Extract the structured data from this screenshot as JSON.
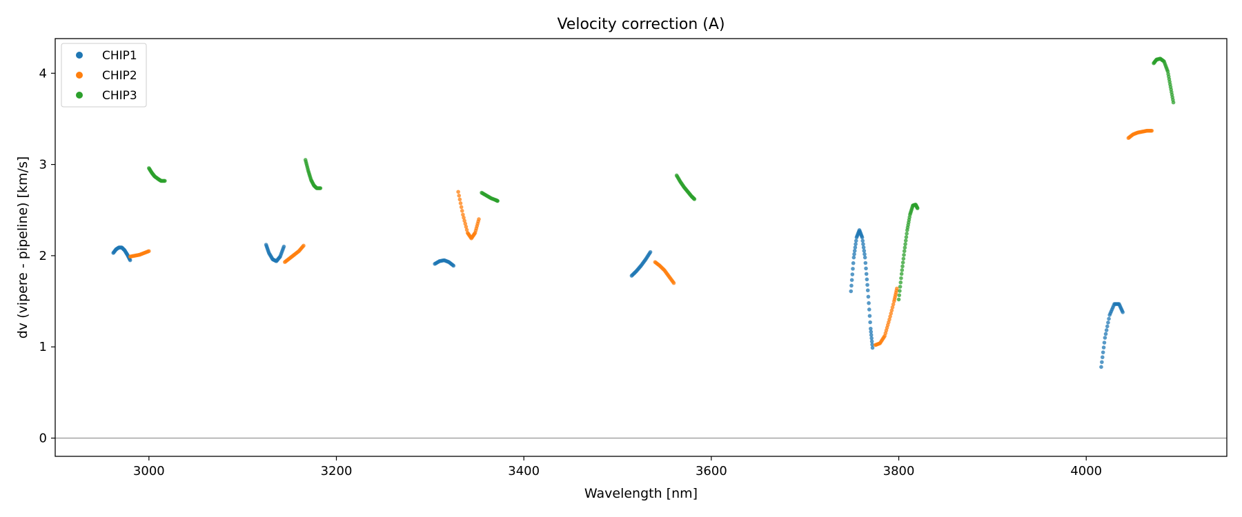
{
  "chart_data": {
    "type": "scatter",
    "title": "Velocity correction (A)",
    "xlabel": "Wavelength [nm]",
    "ylabel": "dv (vipere - pipeline) [km/s]",
    "xlim": [
      2900,
      4150
    ],
    "ylim": [
      -0.2,
      4.38
    ],
    "xticks": [
      3000,
      3200,
      3400,
      3600,
      3800,
      4000
    ],
    "yticks": [
      0,
      1,
      2,
      3,
      4
    ],
    "xtick_labels": [
      "3000",
      "3200",
      "3400",
      "3600",
      "3800",
      "4000"
    ],
    "ytick_labels": [
      "0",
      "1",
      "2",
      "3",
      "4"
    ],
    "hline_y": 0,
    "hline_color": "#808080",
    "grid": false,
    "legend_position": "top-left",
    "series": [
      {
        "name": "CHIP1",
        "color": "#1f77b4",
        "segments": [
          [
            [
              2962,
              2.03
            ],
            [
              2965,
              2.07
            ],
            [
              2968,
              2.09
            ],
            [
              2971,
              2.09
            ],
            [
              2974,
              2.06
            ],
            [
              2977,
              2.01
            ],
            [
              2980,
              1.95
            ]
          ],
          [
            [
              3125,
              2.12
            ],
            [
              3128,
              2.03
            ],
            [
              3132,
              1.96
            ],
            [
              3136,
              1.94
            ],
            [
              3140,
              1.99
            ],
            [
              3144,
              2.1
            ]
          ],
          [
            [
              3305,
              1.91
            ],
            [
              3310,
              1.94
            ],
            [
              3315,
              1.95
            ],
            [
              3320,
              1.93
            ],
            [
              3325,
              1.89
            ]
          ],
          [
            [
              3515,
              1.78
            ],
            [
              3520,
              1.83
            ],
            [
              3525,
              1.89
            ],
            [
              3530,
              1.96
            ],
            [
              3535,
              2.04
            ]
          ],
          [
            [
              3749,
              1.61
            ],
            [
              3752,
              1.98
            ],
            [
              3755,
              2.2
            ],
            [
              3758,
              2.28
            ],
            [
              3761,
              2.2
            ],
            [
              3764,
              1.98
            ],
            [
              3767,
              1.62
            ],
            [
              3770,
              1.2
            ],
            [
              3772,
              0.99
            ]
          ],
          [
            [
              4016,
              0.78
            ],
            [
              4020,
              1.1
            ],
            [
              4025,
              1.35
            ],
            [
              4030,
              1.47
            ],
            [
              4035,
              1.47
            ],
            [
              4039,
              1.38
            ]
          ]
        ]
      },
      {
        "name": "CHIP2",
        "color": "#ff7f0e",
        "segments": [
          [
            [
              2980,
              1.99
            ],
            [
              2985,
              2.0
            ],
            [
              2990,
              2.01
            ],
            [
              2995,
              2.03
            ],
            [
              3000,
              2.05
            ]
          ],
          [
            [
              3145,
              1.93
            ],
            [
              3150,
              1.97
            ],
            [
              3155,
              2.01
            ],
            [
              3160,
              2.05
            ],
            [
              3165,
              2.11
            ]
          ],
          [
            [
              3330,
              2.7
            ],
            [
              3335,
              2.45
            ],
            [
              3340,
              2.25
            ],
            [
              3344,
              2.19
            ],
            [
              3348,
              2.25
            ],
            [
              3352,
              2.4
            ]
          ],
          [
            [
              3540,
              1.93
            ],
            [
              3545,
              1.89
            ],
            [
              3550,
              1.84
            ],
            [
              3555,
              1.77
            ],
            [
              3560,
              1.7
            ]
          ],
          [
            [
              3775,
              1.02
            ],
            [
              3780,
              1.04
            ],
            [
              3785,
              1.12
            ],
            [
              3790,
              1.3
            ],
            [
              3795,
              1.5
            ],
            [
              3798,
              1.64
            ]
          ],
          [
            [
              4045,
              3.29
            ],
            [
              4050,
              3.33
            ],
            [
              4055,
              3.35
            ],
            [
              4060,
              3.36
            ],
            [
              4065,
              3.37
            ],
            [
              4070,
              3.37
            ]
          ]
        ]
      },
      {
        "name": "CHIP3",
        "color": "#2ca02c",
        "segments": [
          [
            [
              3000,
              2.96
            ],
            [
              3003,
              2.91
            ],
            [
              3006,
              2.87
            ],
            [
              3010,
              2.84
            ],
            [
              3013,
              2.82
            ],
            [
              3017,
              2.82
            ]
          ],
          [
            [
              3167,
              3.05
            ],
            [
              3170,
              2.93
            ],
            [
              3173,
              2.83
            ],
            [
              3176,
              2.77
            ],
            [
              3179,
              2.74
            ],
            [
              3183,
              2.74
            ]
          ],
          [
            [
              3355,
              2.69
            ],
            [
              3360,
              2.66
            ],
            [
              3365,
              2.63
            ],
            [
              3370,
              2.61
            ],
            [
              3372,
              2.6
            ]
          ],
          [
            [
              3563,
              2.88
            ],
            [
              3567,
              2.81
            ],
            [
              3571,
              2.75
            ],
            [
              3575,
              2.7
            ],
            [
              3579,
              2.65
            ],
            [
              3582,
              2.62
            ]
          ],
          [
            [
              3800,
              1.52
            ],
            [
              3803,
              1.8
            ],
            [
              3806,
              2.05
            ],
            [
              3809,
              2.28
            ],
            [
              3812,
              2.45
            ],
            [
              3815,
              2.55
            ],
            [
              3818,
              2.56
            ],
            [
              3820,
              2.52
            ]
          ],
          [
            [
              4072,
              4.11
            ],
            [
              4075,
              4.15
            ],
            [
              4079,
              4.16
            ],
            [
              4083,
              4.13
            ],
            [
              4087,
              4.02
            ],
            [
              4090,
              3.85
            ],
            [
              4093,
              3.68
            ]
          ]
        ]
      }
    ]
  }
}
